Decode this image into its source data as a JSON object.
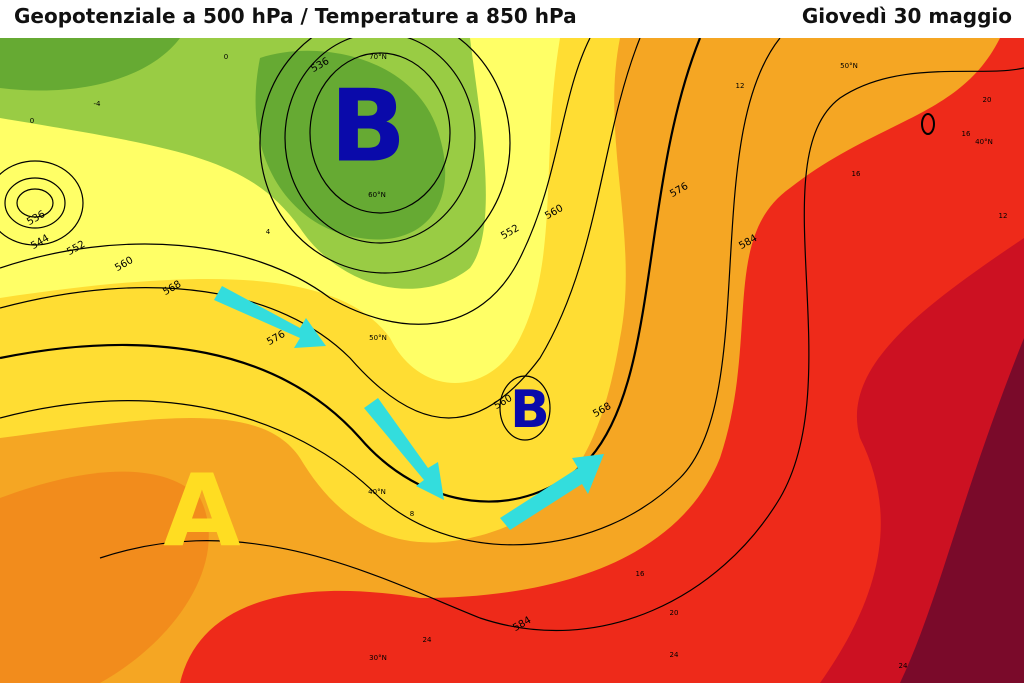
{
  "header": {
    "title": "Geopotenziale a 500 hPa / Temperature a 850 hPa",
    "date": "Giovedì 30 maggio"
  },
  "map": {
    "pressure_labels": [
      "B",
      "B",
      "A"
    ],
    "contour_labels": [
      "536",
      "536",
      "544",
      "552",
      "560",
      "568",
      "576",
      "552",
      "560",
      "576",
      "584",
      "560",
      "568",
      "584"
    ],
    "latitude_labels": [
      "70°N",
      "60°N",
      "50°N",
      "40°N",
      "30°N",
      "50°N",
      "40°N"
    ],
    "temperature_labels": [
      "0",
      "-4",
      "0",
      "4",
      "8",
      "12",
      "16",
      "20",
      "16",
      "12",
      "16",
      "20",
      "24",
      "24",
      "24"
    ]
  }
}
